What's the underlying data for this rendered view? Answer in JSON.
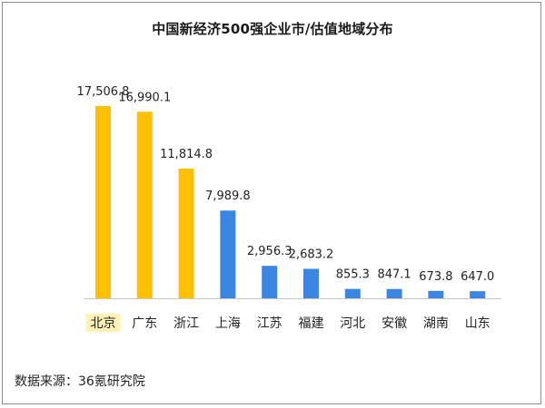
{
  "chart_data": {
    "type": "bar",
    "title": "中国新经济500强企业市/估值地域分布",
    "categories": [
      "北京",
      "广东",
      "浙江",
      "上海",
      "江苏",
      "福建",
      "河北",
      "安徽",
      "湖南",
      "山东"
    ],
    "values": [
      17506.8,
      16990.1,
      11814.8,
      7989.8,
      2956.3,
      2683.2,
      855.3,
      847.1,
      673.8,
      647.0
    ],
    "value_labels": [
      "17,506.8",
      "16,990.1",
      "11,814.8",
      "7,989.8",
      "2,956.3",
      "2,683.2",
      "855.3",
      "847.1",
      "673.8",
      "647.0"
    ],
    "bar_colors": [
      "#FFC000",
      "#FFC000",
      "#FFC000",
      "#3A86E0",
      "#3A86E0",
      "#3A86E0",
      "#3A86E0",
      "#3A86E0",
      "#3A86E0",
      "#3A86E0"
    ],
    "highlight_category_index": 0,
    "highlight_color": "#FFF2B3",
    "ylim": [
      0,
      17506.8
    ],
    "grid": false,
    "legend": "none",
    "xlabel": "",
    "ylabel": ""
  },
  "source": "数据来源：36氪研究院"
}
